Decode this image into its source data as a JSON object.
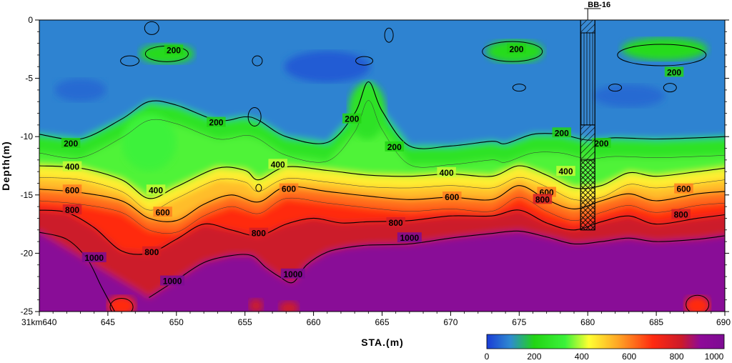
{
  "chart_data": {
    "type": "heatmap",
    "title": "",
    "xlabel": "STA.(m)",
    "ylabel": "Depth(m)",
    "xlim": [
      640,
      690
    ],
    "ylim": [
      -25,
      0
    ],
    "x_ticks": [
      {
        "value": 640,
        "label": "31km640"
      },
      {
        "value": 645,
        "label": "645"
      },
      {
        "value": 650,
        "label": "650"
      },
      {
        "value": 655,
        "label": "655"
      },
      {
        "value": 660,
        "label": "660"
      },
      {
        "value": 665,
        "label": "665"
      },
      {
        "value": 670,
        "label": "670"
      },
      {
        "value": 675,
        "label": "675"
      },
      {
        "value": 680,
        "label": "680"
      },
      {
        "value": 685,
        "label": "685"
      },
      {
        "value": 690,
        "label": "690"
      }
    ],
    "y_ticks": [
      {
        "value": 0,
        "label": "0"
      },
      {
        "value": -5,
        "label": "-5"
      },
      {
        "value": -10,
        "label": "-10"
      },
      {
        "value": -15,
        "label": "-15"
      },
      {
        "value": -20,
        "label": "-20"
      },
      {
        "value": -25,
        "label": "-25"
      }
    ],
    "colorscale": {
      "min": 0,
      "max": 1000,
      "stops": [
        {
          "value": 0,
          "color": "#1a3cd6"
        },
        {
          "value": 100,
          "color": "#2f8bd0"
        },
        {
          "value": 200,
          "color": "#22d414"
        },
        {
          "value": 330,
          "color": "#3cf23a"
        },
        {
          "value": 430,
          "color": "#ffff33"
        },
        {
          "value": 560,
          "color": "#ffa024"
        },
        {
          "value": 700,
          "color": "#ff2a10"
        },
        {
          "value": 820,
          "color": "#cc1a2a"
        },
        {
          "value": 900,
          "color": "#8e0a98"
        },
        {
          "value": 1000,
          "color": "#7d0c93"
        }
      ],
      "ticks": [
        "0",
        "200",
        "400",
        "600",
        "800",
        "1000"
      ]
    },
    "contour_levels": [
      200,
      400,
      600,
      800,
      1000
    ],
    "contours": [
      {
        "level": 200,
        "x": [
          640,
          643,
          646,
          648,
          650,
          653,
          655,
          656,
          658,
          661,
          663,
          664,
          665,
          667,
          670,
          673,
          674,
          676,
          678,
          680,
          682,
          685,
          688,
          690
        ],
        "y": [
          -9.8,
          -10.2,
          -8.5,
          -7,
          -7.3,
          -8.6,
          -8.3,
          -8.6,
          -10,
          -10.5,
          -8.0,
          -5.3,
          -7.8,
          -10.8,
          -10.8,
          -10.4,
          -10.6,
          -9.8,
          -9.8,
          -10.3,
          -10.1,
          -10.2,
          -10.1,
          -10
        ]
      },
      {
        "level": 400,
        "x": [
          640,
          643,
          646,
          648,
          650,
          653,
          655,
          656,
          658,
          661,
          664,
          667,
          670,
          673,
          675,
          677,
          679,
          681,
          683,
          685,
          688,
          690
        ],
        "y": [
          -12.5,
          -12.7,
          -13.7,
          -15.3,
          -14.3,
          -12.7,
          -12.9,
          -13.7,
          -12.6,
          -12.9,
          -13.3,
          -13.4,
          -13.2,
          -13.4,
          -12.5,
          -13.3,
          -14.4,
          -14.2,
          -13.1,
          -13.4,
          -13.0,
          -12.7
        ]
      },
      {
        "level": 600,
        "x": [
          640,
          643,
          646,
          648,
          650,
          652,
          654,
          656,
          658,
          661,
          664,
          667,
          670,
          673,
          675,
          677,
          679,
          681,
          683,
          685,
          688,
          690
        ],
        "y": [
          -14.5,
          -14.8,
          -15.5,
          -17.0,
          -17.2,
          -15.8,
          -15.0,
          -15.6,
          -14.3,
          -14.7,
          -15.1,
          -15.4,
          -15.2,
          -15.4,
          -14.2,
          -15.4,
          -16.2,
          -15.5,
          -14.9,
          -15.5,
          -14.9,
          -14.7
        ]
      },
      {
        "level": 800,
        "x": [
          640,
          642,
          644,
          646,
          648,
          650,
          652,
          654,
          656,
          658,
          660,
          662,
          664,
          667,
          670,
          673,
          675,
          677,
          679,
          681,
          683,
          685,
          688,
          690
        ],
        "y": [
          -16.3,
          -16.5,
          -17.8,
          -19.8,
          -20.0,
          -18.8,
          -17.5,
          -18.0,
          -18.5,
          -17.5,
          -17.0,
          -17.4,
          -17.3,
          -17.2,
          -16.8,
          -16.8,
          -16.3,
          -17.4,
          -18.0,
          -17.3,
          -16.8,
          -17.5,
          -17.0,
          -16.7
        ]
      },
      {
        "level": 1000,
        "x": [
          648,
          650,
          652,
          654,
          655.5,
          656.5,
          657.5,
          658.5,
          659.5,
          661,
          662.5,
          664,
          667,
          670,
          673,
          675,
          677,
          679,
          681,
          683,
          685,
          688,
          690
        ],
        "y": [
          -23.8,
          -22.3,
          -20.8,
          -20.2,
          -20.2,
          -21.2,
          -22.0,
          -22.5,
          -21.0,
          -19.9,
          -19.5,
          -19.3,
          -19.2,
          -18.7,
          -18.3,
          -18.1,
          -18.6,
          -19.2,
          -19.0,
          -18.7,
          -19.0,
          -18.8,
          -18.5
        ]
      },
      {
        "level": 1000,
        "x": [
          640,
          642,
          643.5,
          644.5,
          645.5
        ],
        "y": [
          -18.2,
          -18.8,
          -20.5,
          -22.8,
          -25
        ]
      }
    ],
    "contour_labels": [
      {
        "text": "200",
        "x": 649.8,
        "y": -2.6
      },
      {
        "text": "200",
        "x": 674.8,
        "y": -2.5
      },
      {
        "text": "200",
        "x": 686.3,
        "y": -4.5
      },
      {
        "text": "200",
        "x": 642.3,
        "y": -10.6
      },
      {
        "text": "200",
        "x": 652.9,
        "y": -8.8
      },
      {
        "text": "200",
        "x": 662.8,
        "y": -8.5
      },
      {
        "text": "200",
        "x": 665.9,
        "y": -10.9
      },
      {
        "text": "200",
        "x": 678.1,
        "y": -9.7
      },
      {
        "text": "200",
        "x": 681.0,
        "y": -10.6
      },
      {
        "text": "400",
        "x": 642.4,
        "y": -12.6
      },
      {
        "text": "400",
        "x": 648.5,
        "y": -14.6
      },
      {
        "text": "400",
        "x": 657.4,
        "y": -12.4
      },
      {
        "text": "400",
        "x": 669.7,
        "y": -13.1
      },
      {
        "text": "400",
        "x": 678.4,
        "y": -13.0
      },
      {
        "text": "600",
        "x": 642.4,
        "y": -14.6
      },
      {
        "text": "600",
        "x": 649.0,
        "y": -16.5
      },
      {
        "text": "600",
        "x": 658.2,
        "y": -14.5
      },
      {
        "text": "600",
        "x": 670.1,
        "y": -15.2
      },
      {
        "text": "600",
        "x": 677.0,
        "y": -14.8
      },
      {
        "text": "600",
        "x": 687.0,
        "y": -14.5
      },
      {
        "text": "800",
        "x": 642.4,
        "y": -16.3
      },
      {
        "text": "800",
        "x": 648.2,
        "y": -19.9
      },
      {
        "text": "800",
        "x": 656.0,
        "y": -18.3
      },
      {
        "text": "800",
        "x": 666.0,
        "y": -17.4
      },
      {
        "text": "800",
        "x": 676.7,
        "y": -15.4
      },
      {
        "text": "800",
        "x": 686.8,
        "y": -16.7
      },
      {
        "text": "1000",
        "x": 644.0,
        "y": -20.4
      },
      {
        "text": "1000",
        "x": 649.7,
        "y": -22.4
      },
      {
        "text": "1000",
        "x": 658.5,
        "y": -21.8
      },
      {
        "text": "1000",
        "x": 667.0,
        "y": -18.7
      }
    ],
    "borehole": {
      "label": "BB-16",
      "x": 680,
      "top_depth": 0,
      "bottom_depth": -18
    },
    "grid": false,
    "legend": "colorbar-bottom-right"
  }
}
